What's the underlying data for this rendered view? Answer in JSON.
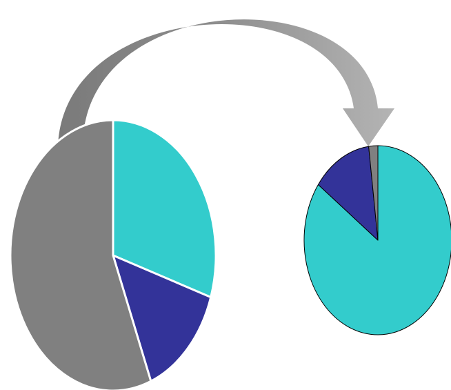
{
  "chart_data": [
    {
      "type": "pie",
      "title": "",
      "slices": [
        {
          "value": 30,
          "color": "#33CCCC"
        },
        {
          "value": 14,
          "color": "#333399"
        },
        {
          "value": 56,
          "color": "#808080"
        }
      ],
      "stroke": "#ffffff"
    },
    {
      "type": "pie",
      "title": "",
      "slices": [
        {
          "value": 85,
          "color": "#33CCCC"
        },
        {
          "value": 13,
          "color": "#333399"
        },
        {
          "value": 2,
          "color": "#808080"
        }
      ],
      "stroke": "#000000"
    }
  ],
  "arrow": {
    "color": "#A8A8A8",
    "from": "large-pie",
    "to": "small-pie"
  }
}
